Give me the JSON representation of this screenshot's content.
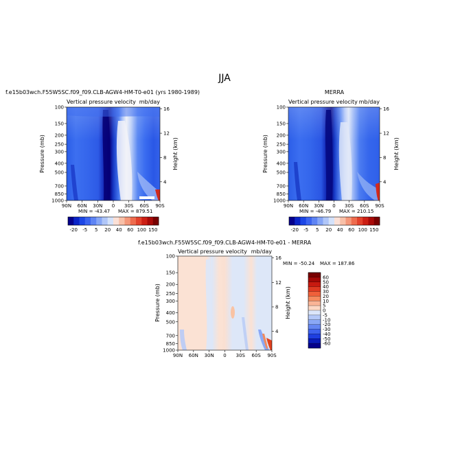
{
  "page_title": "JJA",
  "panels": [
    {
      "id": "model",
      "heading": "f.e15b03wch.F55W5SC.f09_f09.CLB-AGW4-HM-T0-e01 (yrs 1980-1989)",
      "left_title": "Vertical pressure velocity",
      "right_title": "mb/day",
      "min_label": "MIN = -43.47",
      "max_label": "MAX = 879.51"
    },
    {
      "id": "obs",
      "heading": "MERRA",
      "left_title": "Vertical pressure velocity",
      "right_title": "mb/day",
      "min_label": "MIN = -46.79",
      "max_label": "MAX = 210.15"
    },
    {
      "id": "diff",
      "heading": "f.e15b03wch.F55W5SC.f09_f09.CLB-AGW4-HM-T0-e01 - MERRA",
      "left_title": "Vertical pressure velocity",
      "right_title": "mb/day",
      "min_label": "MIN = -50.24",
      "max_label": "MAX = 187.86"
    }
  ],
  "chart_data": [
    {
      "type": "heatmap",
      "title": "Vertical pressure velocity",
      "units": "mb/day",
      "xlabel": "",
      "ylabel": "Pressure (mb)",
      "y2label": "Height (km)",
      "x_ticks": [
        "90N",
        "60N",
        "30N",
        "0",
        "30S",
        "60S",
        "90S"
      ],
      "x_values": [
        90,
        60,
        30,
        0,
        -30,
        -60,
        -90
      ],
      "y_ticks": [
        "100",
        "150",
        "200",
        "250",
        "300",
        "400",
        "500",
        "700",
        "850",
        "1000"
      ],
      "y_values": [
        100,
        150,
        200,
        250,
        300,
        400,
        500,
        700,
        850,
        1000
      ],
      "y_scale": "log",
      "ylim": [
        1000,
        100
      ],
      "y2_ticks": [
        "4",
        "8",
        "12",
        "16"
      ],
      "min": -43.47,
      "max": 879.51,
      "colorbar": {
        "orientation": "horizontal",
        "labels": [
          "-20",
          "-5",
          "5",
          "20",
          "40",
          "60",
          "100",
          "150"
        ],
        "colors": [
          "#04008c",
          "#0a24c8",
          "#1c46e6",
          "#3b64f0",
          "#5e84f4",
          "#86a6f6",
          "#b0c6f8",
          "#d4e2fa",
          "#fbe0d6",
          "#f8c0a8",
          "#f4987a",
          "#ee6c4e",
          "#e3422c",
          "#cc1f14",
          "#a80a08",
          "#780000"
        ]
      }
    },
    {
      "type": "heatmap",
      "title": "Vertical pressure velocity",
      "units": "mb/day",
      "xlabel": "",
      "ylabel": "Pressure (mb)",
      "y2label": "Height (km)",
      "x_ticks": [
        "90N",
        "60N",
        "30N",
        "0",
        "30S",
        "60S",
        "90S"
      ],
      "x_values": [
        90,
        60,
        30,
        0,
        -30,
        -60,
        -90
      ],
      "y_ticks": [
        "100",
        "150",
        "200",
        "250",
        "300",
        "400",
        "500",
        "700",
        "850",
        "1000"
      ],
      "y_values": [
        100,
        150,
        200,
        250,
        300,
        400,
        500,
        700,
        850,
        1000
      ],
      "y_scale": "log",
      "ylim": [
        1000,
        100
      ],
      "y2_ticks": [
        "4",
        "8",
        "12",
        "16"
      ],
      "min": -46.79,
      "max": 210.15,
      "colorbar": {
        "orientation": "horizontal",
        "labels": [
          "-20",
          "-5",
          "5",
          "20",
          "40",
          "60",
          "100",
          "150"
        ],
        "colors": [
          "#04008c",
          "#0a24c8",
          "#1c46e6",
          "#3b64f0",
          "#5e84f4",
          "#86a6f6",
          "#b0c6f8",
          "#d4e2fa",
          "#fbe0d6",
          "#f8c0a8",
          "#f4987a",
          "#ee6c4e",
          "#e3422c",
          "#cc1f14",
          "#a80a08",
          "#780000"
        ]
      }
    },
    {
      "type": "heatmap",
      "title": "Vertical pressure velocity",
      "units": "mb/day",
      "xlabel": "",
      "ylabel": "Pressure (mb)",
      "y2label": "Height (km)",
      "x_ticks": [
        "90N",
        "60N",
        "30N",
        "0",
        "30S",
        "60S",
        "90S"
      ],
      "x_values": [
        90,
        60,
        30,
        0,
        -30,
        -60,
        -90
      ],
      "y_ticks": [
        "100",
        "150",
        "200",
        "250",
        "300",
        "400",
        "500",
        "700",
        "850",
        "1000"
      ],
      "y_values": [
        100,
        150,
        200,
        250,
        300,
        400,
        500,
        700,
        850,
        1000
      ],
      "y_scale": "log",
      "ylim": [
        1000,
        100
      ],
      "y2_ticks": [
        "4",
        "8",
        "12",
        "16"
      ],
      "min": -50.24,
      "max": 187.86,
      "colorbar": {
        "orientation": "vertical",
        "labels": [
          "60",
          "50",
          "40",
          "30",
          "20",
          "10",
          "5",
          "0",
          "-5",
          "-10",
          "-20",
          "-30",
          "-40",
          "-50",
          "-60"
        ],
        "colors": [
          "#780000",
          "#a30806",
          "#c81a10",
          "#e03a22",
          "#f0603a",
          "#f68a5e",
          "#fab496",
          "#fcd8c4",
          "#dce6fa",
          "#b4c8f8",
          "#8aa8f6",
          "#6486f2",
          "#3e62ee",
          "#1e3ee0",
          "#0a1cba",
          "#04008c"
        ]
      }
    }
  ]
}
